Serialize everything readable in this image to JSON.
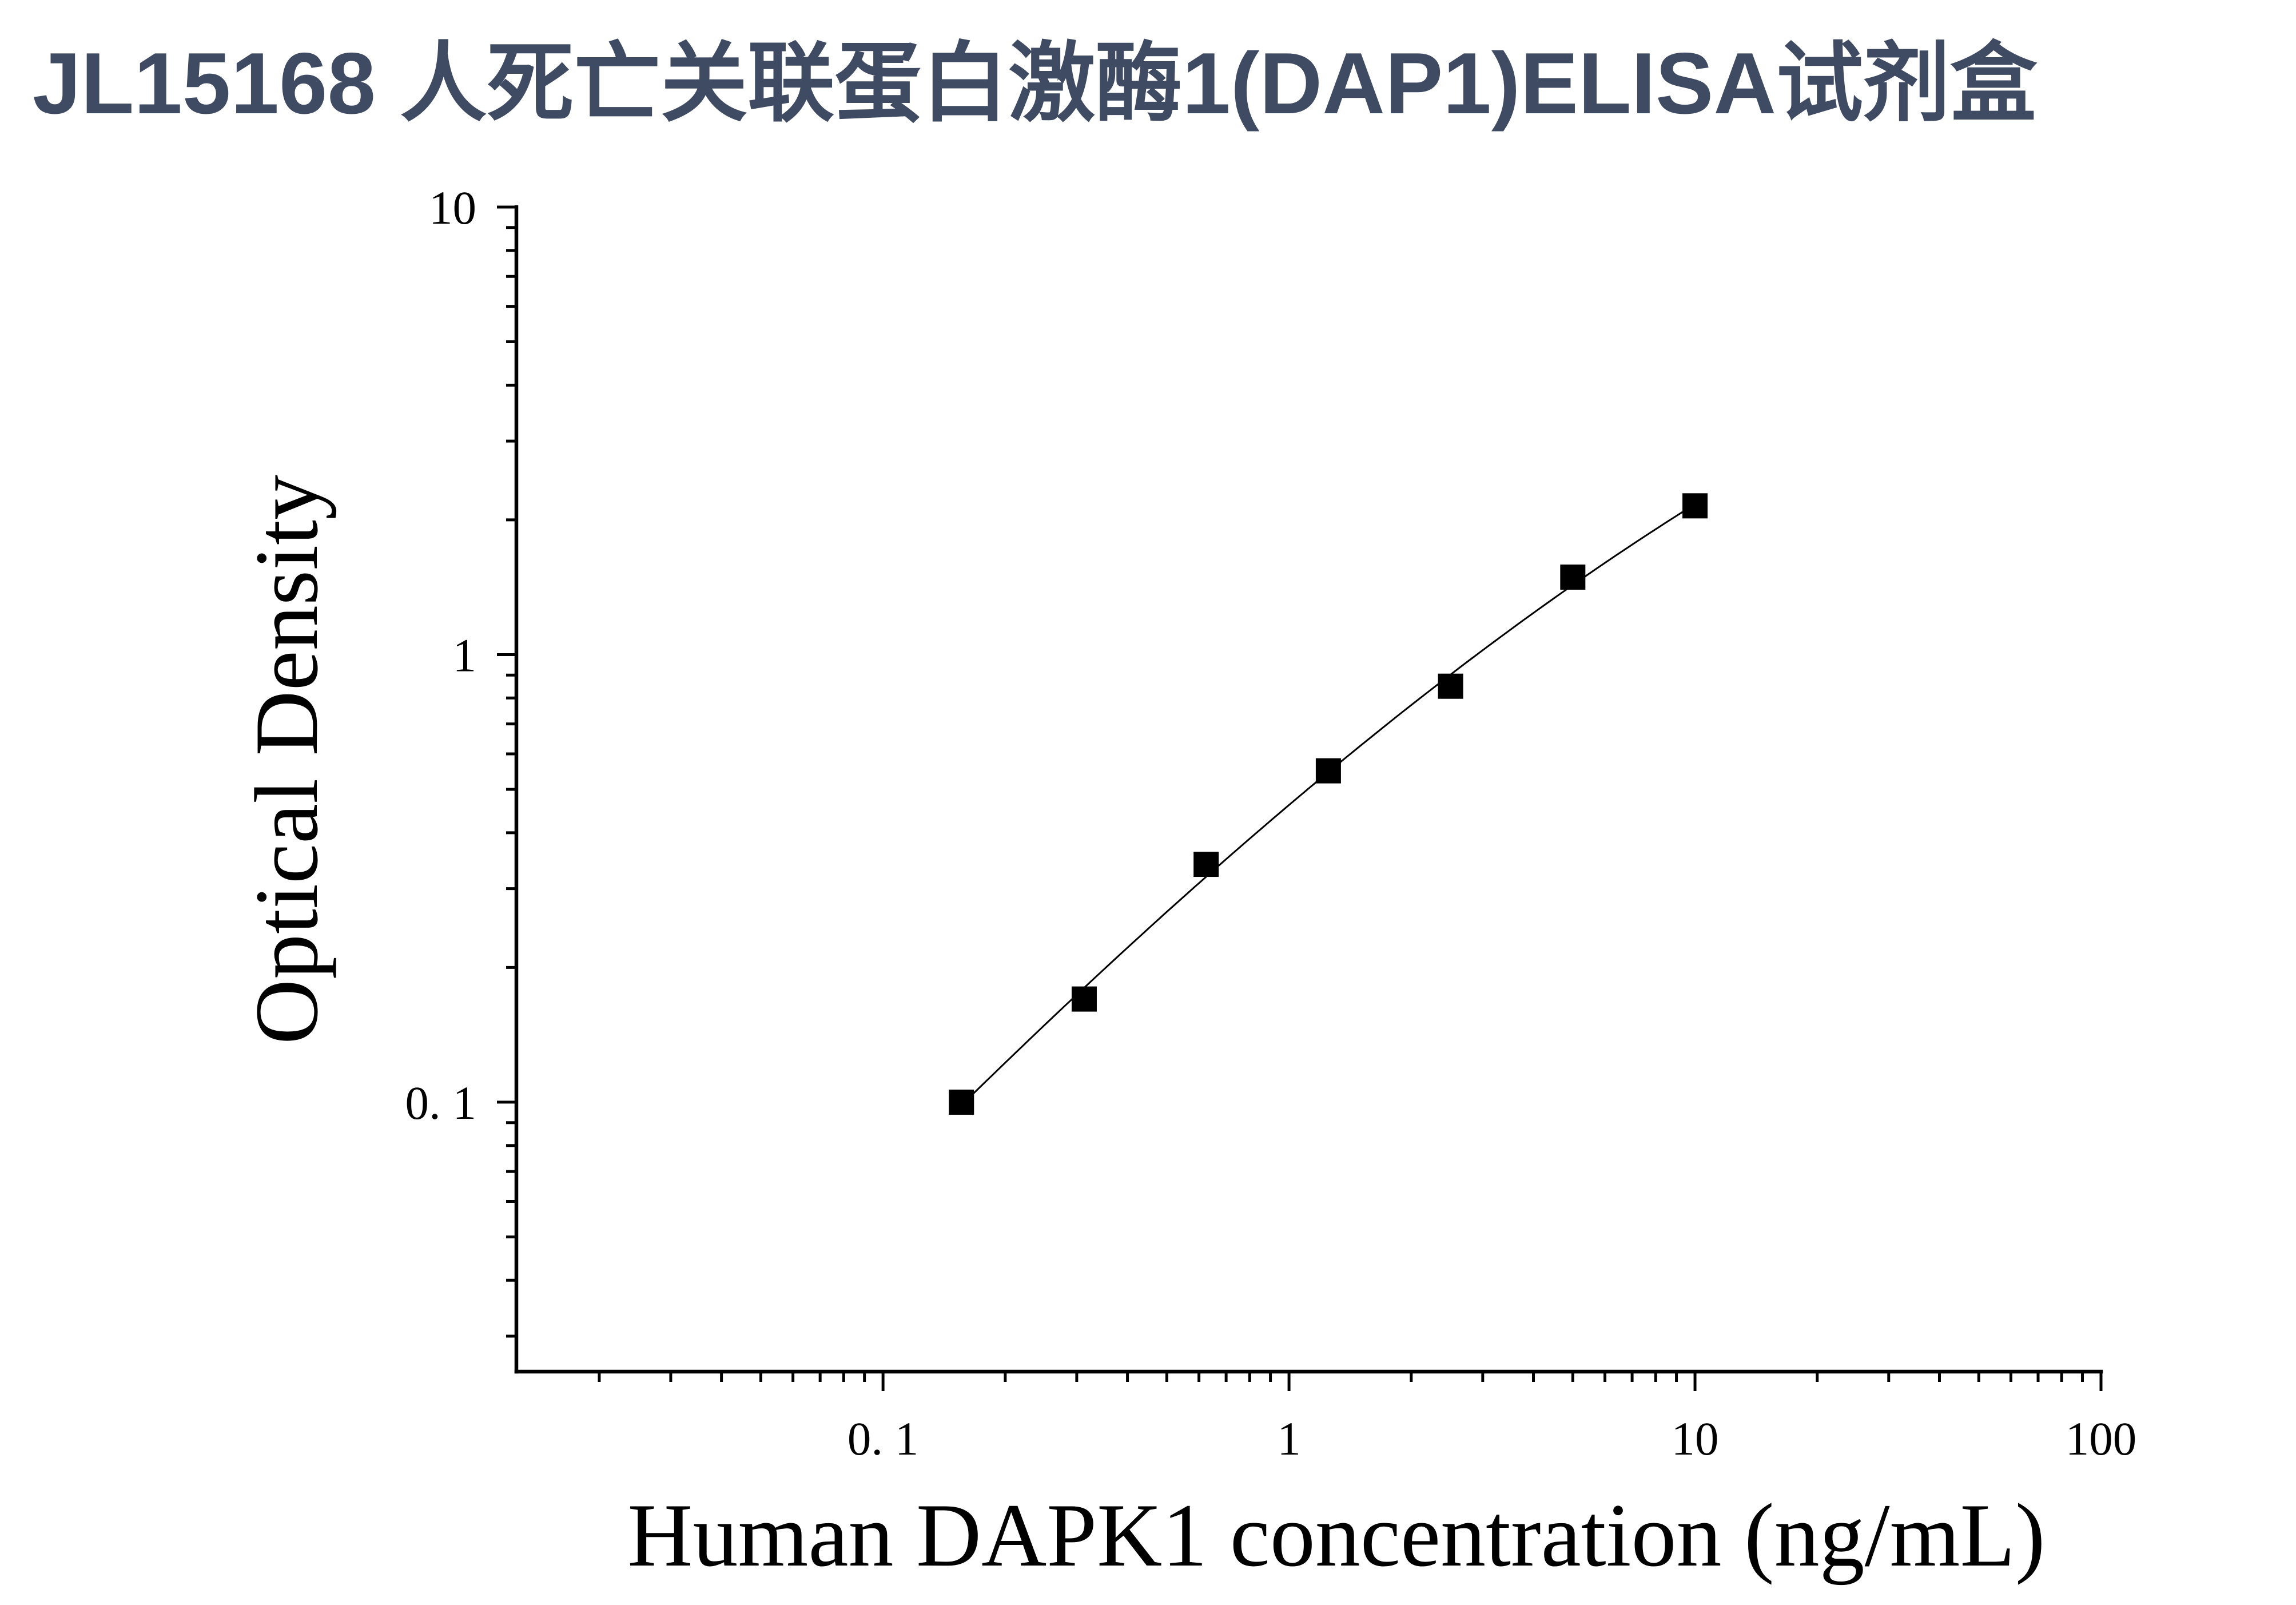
{
  "chart_data": {
    "type": "scatter",
    "title": "JL15168 人死亡关联蛋白激酶1(DAP1)ELISA试剂盒",
    "xlabel": "Human DAPK1 concentration (ng/mL)",
    "ylabel": "Optical Density",
    "xscale": "log",
    "yscale": "log",
    "xlim": [
      0.0125,
      100
    ],
    "ylim": [
      0.025,
      10
    ],
    "x_ticks": [
      0.1,
      1,
      10,
      100
    ],
    "x_tick_labels": [
      "0. 1",
      "1",
      "10",
      "100"
    ],
    "y_ticks": [
      0.1,
      1,
      10
    ],
    "y_tick_labels": [
      "0. 1",
      "1",
      "10"
    ],
    "minor_ticks": true,
    "grid": false,
    "series": [
      {
        "fit_curve": true,
        "x": [
          0.156,
          0.313,
          0.625,
          1.25,
          2.5,
          5,
          10
        ],
        "y": [
          0.1,
          0.17,
          0.34,
          0.55,
          0.85,
          1.49,
          2.15
        ]
      }
    ]
  },
  "colors": {
    "title": "#3f4b63",
    "axis": "#000000",
    "marker": "#000000",
    "curve": "#000000",
    "background": "#ffffff"
  }
}
